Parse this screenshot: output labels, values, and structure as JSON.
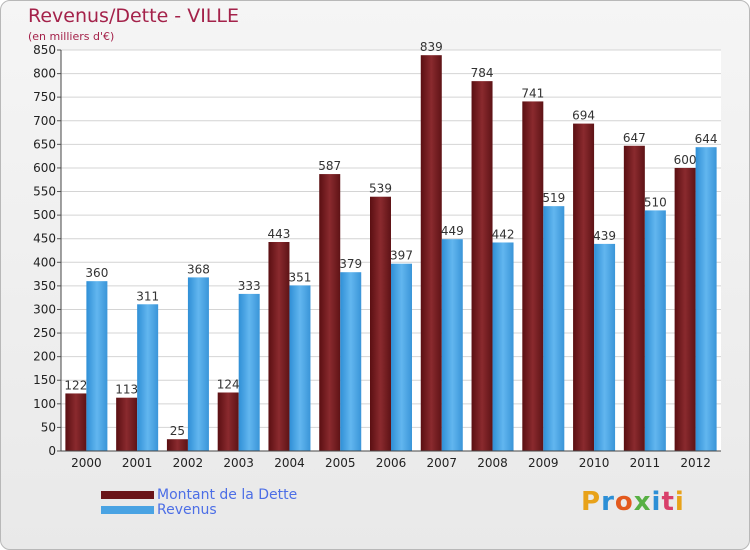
{
  "chart_data": {
    "type": "bar",
    "title": "Revenus/Dette - VILLE",
    "subtitle": "(en milliers d'€)",
    "categories": [
      "2000",
      "2001",
      "2002",
      "2003",
      "2004",
      "2005",
      "2006",
      "2007",
      "2008",
      "2009",
      "2010",
      "2011",
      "2012"
    ],
    "series": [
      {
        "name": "Montant de la Dette",
        "color": "#7a1e22",
        "values": [
          122,
          113,
          25,
          124,
          443,
          587,
          539,
          839,
          784,
          741,
          694,
          647,
          600
        ]
      },
      {
        "name": "Revenus",
        "color": "#4aa3e3",
        "values": [
          360,
          311,
          368,
          333,
          351,
          379,
          397,
          449,
          442,
          519,
          439,
          510,
          644
        ]
      }
    ],
    "ylim": [
      0,
      850
    ],
    "yticks": [
      0,
      50,
      100,
      150,
      200,
      250,
      300,
      350,
      400,
      450,
      500,
      550,
      600,
      650,
      700,
      750,
      800,
      850
    ],
    "grid": true,
    "legend_position": "bottom-left"
  },
  "logo": {
    "text": "Proxiti",
    "colors": [
      "#e8a21a",
      "#2c8fd6",
      "#e35a1e",
      "#57b043",
      "#2c8fd6",
      "#d9406b",
      "#e8a21a"
    ]
  }
}
